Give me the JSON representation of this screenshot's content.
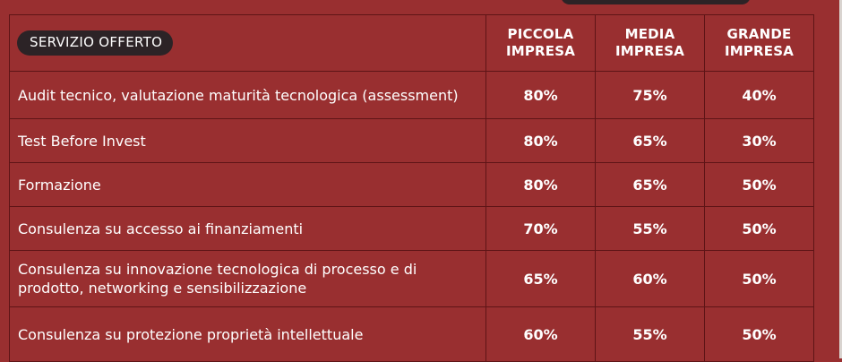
{
  "header": {
    "service_label": "SERVIZIO OFFERTO",
    "columns": [
      "PICCOLA IMPRESA",
      "MEDIA IMPRESA",
      "GRANDE IMPRESA"
    ]
  },
  "rows": [
    {
      "service": "Audit tecnico, valutazione maturità tecnologica (assessment)",
      "values": [
        "80%",
        "75%",
        "40%"
      ]
    },
    {
      "service": "Test Before Invest",
      "values": [
        "80%",
        "65%",
        "30%"
      ]
    },
    {
      "service": "Formazione",
      "values": [
        "80%",
        "65%",
        "50%"
      ]
    },
    {
      "service": "Consulenza su accesso ai finanziamenti",
      "values": [
        "70%",
        "55%",
        "50%"
      ]
    },
    {
      "service": "Consulenza su innovazione tecnologica di processo e di prodotto, networking e sensibilizzazione",
      "values": [
        "65%",
        "60%",
        "50%"
      ]
    },
    {
      "service": "Consulenza su protezione proprietà intellettuale",
      "values": [
        "60%",
        "55%",
        "50%"
      ]
    }
  ],
  "colors": {
    "background": "#992f30",
    "pill": "#2c2326",
    "grid": "#5e1416",
    "text": "#ffffff"
  }
}
